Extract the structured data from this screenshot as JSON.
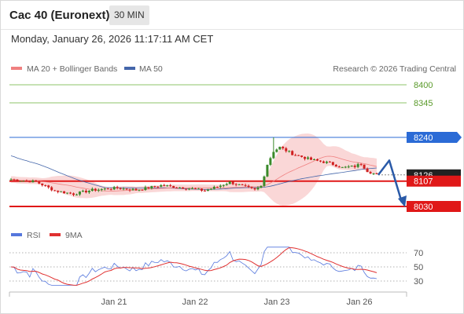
{
  "header": {
    "title": "Cac 40 (Euronext)",
    "timeframe": "30 MIN",
    "datetime": "Monday, January 26, 2026 11:17:11 AM CET"
  },
  "legend": {
    "ma20": "MA 20 + Bollinger Bands",
    "ma50": "MA 50",
    "copyright": "Research © 2026 Trading Central"
  },
  "rsi_legend": {
    "rsi": "RSI",
    "ma": "9MA"
  },
  "colors": {
    "candle_up": "#3a8a2a",
    "candle_down": "#d02020",
    "bollinger": "#f5b7b7",
    "ma20": "#f08080",
    "ma50": "#4466aa",
    "resistance_blue": "#2b6bd6",
    "support_red": "#e01818",
    "target_green": "#8cc46a",
    "current_price": "#222222",
    "rsi_line": "#5577dd",
    "rsi_ma": "#e03030",
    "arrow": "#2a5aa8"
  },
  "chart_data": {
    "type": "candlestick",
    "x_labels": [
      "Jan 21",
      "Jan 22",
      "Jan 23",
      "Jan 26"
    ],
    "y_range": [
      8000,
      8445
    ],
    "levels": [
      {
        "label": "8400",
        "value": 8400,
        "kind": "target"
      },
      {
        "label": "8345",
        "value": 8345,
        "kind": "target"
      },
      {
        "label": "8240",
        "value": 8240,
        "kind": "resistance"
      },
      {
        "label": "8126",
        "value": 8126,
        "kind": "current"
      },
      {
        "label": "8107",
        "value": 8107,
        "kind": "pivot"
      },
      {
        "label": "8030",
        "value": 8030,
        "kind": "support"
      }
    ],
    "arrow": {
      "from": 8126,
      "peak": 8170,
      "to": 8030
    },
    "rsi_ticks": [
      "70",
      "50",
      "30"
    ],
    "rsi_range": [
      20,
      80
    ]
  }
}
